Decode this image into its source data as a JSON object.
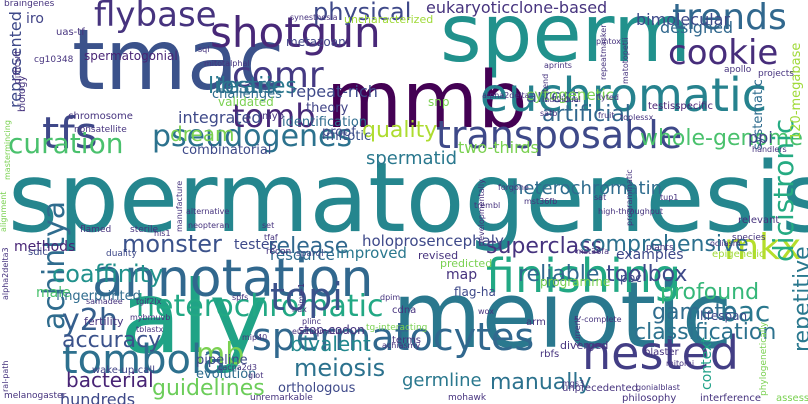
{
  "palette": {
    "background": "#ffffff",
    "colors": [
      "#440154",
      "#482475",
      "#414487",
      "#355f8d",
      "#2a788e",
      "#21908d",
      "#22a884",
      "#42be71",
      "#7ad151",
      "#bddf26",
      "#fde725"
    ]
  },
  "words": [
    {
      "text": "spermatogenesis",
      "color": "#25868e"
    },
    {
      "text": "aly",
      "color": "#20a386"
    },
    {
      "text": "meiotic",
      "color": "#2a788e"
    },
    {
      "text": "sperm",
      "color": "#21918c"
    },
    {
      "text": "mmb",
      "color": "#440154"
    },
    {
      "text": "tmac",
      "color": "#3b528b"
    },
    {
      "text": "annotation",
      "color": "#31688e"
    },
    {
      "text": "finishing",
      "color": "#22a884"
    },
    {
      "text": "euchromatic",
      "color": "#26828e"
    },
    {
      "text": "tombola",
      "color": "#2d708e"
    },
    {
      "text": "spermatocytes",
      "color": "#31688e"
    },
    {
      "text": "nested",
      "color": "#433e85"
    },
    {
      "text": "shotgun",
      "color": "#482878"
    },
    {
      "text": "flybase",
      "color": "#46337e"
    },
    {
      "text": "heterochromatic",
      "color": "#22a884"
    },
    {
      "text": "transposable",
      "color": "#3e4989"
    },
    {
      "text": "pseudogenes",
      "color": "#2c728e"
    },
    {
      "text": "tfs",
      "color": "#3f4889"
    },
    {
      "text": "cookie",
      "color": "#472d7b"
    },
    {
      "text": "trends",
      "color": "#31688e"
    },
    {
      "text": "comr",
      "color": "#443983"
    },
    {
      "text": "tomb",
      "color": "#482878"
    },
    {
      "text": "mkx",
      "color": "#b5de2b"
    },
    {
      "text": "topi",
      "color": "#3b528b"
    },
    {
      "text": "achintya",
      "color": "#2f6c8e"
    },
    {
      "text": "y2h",
      "color": "#355f8d"
    },
    {
      "text": "mb",
      "color": "#7ad151"
    },
    {
      "text": "curation",
      "color": "#4ac16d"
    },
    {
      "text": "quality",
      "color": "#addc30"
    },
    {
      "text": "physical",
      "color": "#3e4989"
    },
    {
      "text": "libraries",
      "color": "#2a788e"
    },
    {
      "text": "testis",
      "color": "#2c728e"
    },
    {
      "text": "dream",
      "color": "#7ad151"
    },
    {
      "text": "monster",
      "color": "#3b528b"
    },
    {
      "text": "coaffinity",
      "color": "#21918c"
    },
    {
      "text": "accuracy",
      "color": "#3b528b"
    },
    {
      "text": "bacterial",
      "color": "#482475"
    },
    {
      "text": "hundreds",
      "color": "#3e4989"
    },
    {
      "text": "guidelines",
      "color": "#6ccd5a"
    },
    {
      "text": "meiosis",
      "color": "#2c728e"
    },
    {
      "text": "bivalent",
      "color": "#23888e"
    },
    {
      "text": "germline",
      "color": "#2a788e"
    },
    {
      "text": "manually",
      "color": "#2c728e"
    },
    {
      "text": "classification",
      "color": "#2c728e"
    },
    {
      "text": "toolbox",
      "color": "#3e4989"
    },
    {
      "text": "bac",
      "color": "#2a788e"
    },
    {
      "text": "superclass",
      "color": "#46337e"
    },
    {
      "text": "comprehensive",
      "color": "#2d708e"
    },
    {
      "text": "heterochromatin",
      "color": "#2f6c8e"
    },
    {
      "text": "whole-genome",
      "color": "#4ac16d"
    },
    {
      "text": "artificial",
      "color": "#31688e"
    },
    {
      "text": "dicistronic",
      "color": "#25ab82"
    },
    {
      "text": "repetitive",
      "color": "#2a788e"
    },
    {
      "text": "release",
      "color": "#31688e"
    },
    {
      "text": "profound",
      "color": "#35b779"
    },
    {
      "text": "gamete",
      "color": "#2f6c8e"
    },
    {
      "text": "reliable",
      "color": "#31688e"
    },
    {
      "text": "context",
      "color": "#1fa187"
    },
    {
      "text": "arrest",
      "color": "#3b528b"
    },
    {
      "text": "designed",
      "color": "#31688e"
    },
    {
      "text": "bimolecular",
      "color": "#3e4989"
    },
    {
      "text": "eukaryoticclone-based",
      "color": "#46337e"
    },
    {
      "text": "repeat-rich",
      "color": "#3e4989"
    },
    {
      "text": "spermatid",
      "color": "#2a788e"
    },
    {
      "text": "two-thirds",
      "color": "#7ad151"
    },
    {
      "text": "integrated",
      "color": "#3e4989"
    },
    {
      "text": "challenges",
      "color": "#2f6c8e"
    },
    {
      "text": "theory",
      "color": "#414487"
    },
    {
      "text": "mitotic",
      "color": "#3b528b"
    },
    {
      "text": "combinatorial",
      "color": "#3e4989"
    },
    {
      "text": "identification",
      "color": "#2f6c8e"
    },
    {
      "text": "proof",
      "color": "#3e4989"
    },
    {
      "text": "quality",
      "color": "#addc30"
    },
    {
      "text": "holoprosencephaly",
      "color": "#3e4989"
    },
    {
      "text": "improved",
      "color": "#2a788e"
    },
    {
      "text": "resource",
      "color": "#2f6c8e"
    },
    {
      "text": "testes",
      "color": "#3e4989"
    },
    {
      "text": "map",
      "color": "#46337e"
    },
    {
      "text": "examples",
      "color": "#3e4989"
    },
    {
      "text": "methods",
      "color": "#482475"
    },
    {
      "text": "male",
      "color": "#4ac16d"
    },
    {
      "text": "fingerprinted",
      "color": "#2f6c8e"
    },
    {
      "text": "represented",
      "color": "#3e4989"
    },
    {
      "text": "spermatogonial",
      "color": "#482475"
    },
    {
      "text": "cytogenetic",
      "color": "#7ad151"
    },
    {
      "text": "integrated",
      "color": "#3e4989"
    },
    {
      "text": "validated",
      "color": "#7ad151"
    },
    {
      "text": "metazoan",
      "color": "#414487"
    },
    {
      "text": "uncharacterized",
      "color": "#a0da39"
    },
    {
      "text": "testisspecific",
      "color": "#482475"
    },
    {
      "text": "120-megabase",
      "color": "#a0da39"
    },
    {
      "text": "systematic",
      "color": "#2f6c8e"
    },
    {
      "text": "evolution",
      "color": "#2f6c8e"
    },
    {
      "text": "pipeline",
      "color": "#3e4989"
    },
    {
      "text": "orthologous",
      "color": "#3e4989"
    },
    {
      "text": "wake-up-call",
      "color": "#414487"
    },
    {
      "text": "pbc",
      "color": "#3e4989"
    },
    {
      "text": "lifespan",
      "color": "#3e4989"
    },
    {
      "text": "snp",
      "color": "#7ad151"
    },
    {
      "text": "ppi",
      "color": "#414487"
    },
    {
      "text": "sdic",
      "color": "#3e4989"
    },
    {
      "text": "duality",
      "color": "#3e4989"
    },
    {
      "text": "recon",
      "color": "#46337e"
    },
    {
      "text": "sparql",
      "color": "#3e4989"
    },
    {
      "text": "revised",
      "color": "#46337e"
    },
    {
      "text": "predicted",
      "color": "#7ad151"
    },
    {
      "text": "plants",
      "color": "#46337e"
    },
    {
      "text": "species",
      "color": "#46337e"
    },
    {
      "text": "relevant",
      "color": "#46337e"
    },
    {
      "text": "epigenetic",
      "color": "#a0da39"
    },
    {
      "text": "programme",
      "color": "#7ad151"
    },
    {
      "text": "stop-codon",
      "color": "#46337e"
    },
    {
      "text": "flag-ha",
      "color": "#3e4989"
    },
    {
      "text": "fertility",
      "color": "#46337e"
    },
    {
      "text": "cdna",
      "color": "#46337e"
    },
    {
      "text": "terms",
      "color": "#46337e"
    },
    {
      "text": "arm",
      "color": "#46337e"
    },
    {
      "text": "diverged",
      "color": "#46337e"
    },
    {
      "text": "blaster",
      "color": "#46337e"
    },
    {
      "text": "rbfs",
      "color": "#46337e"
    },
    {
      "text": "unprecedented",
      "color": "#46337e"
    },
    {
      "text": "philosophy",
      "color": "#46337e"
    },
    {
      "text": "interference",
      "color": "#46337e"
    },
    {
      "text": "assess",
      "color": "#7ad151"
    },
    {
      "text": "melanogaster",
      "color": "#46337e"
    },
    {
      "text": "mohawk",
      "color": "#46337e"
    },
    {
      "text": "unremarkable",
      "color": "#46337e"
    },
    {
      "text": "braingenes",
      "color": "#46337e"
    },
    {
      "text": "iro",
      "color": "#414487"
    },
    {
      "text": "uas-tf",
      "color": "#46337e"
    },
    {
      "text": "cg10348",
      "color": "#46337e"
    },
    {
      "text": "biology",
      "color": "#46337e"
    },
    {
      "text": "difficult",
      "color": "#46337e"
    },
    {
      "text": "chromosome",
      "color": "#46337e"
    },
    {
      "text": "nonsatellite",
      "color": "#46337e"
    },
    {
      "text": "sql",
      "color": "#46337e"
    },
    {
      "text": "myb",
      "color": "#46337e"
    },
    {
      "text": "sterile",
      "color": "#46337e"
    },
    {
      "text": "flamed",
      "color": "#46337e"
    },
    {
      "text": "his1",
      "color": "#46337e"
    },
    {
      "text": "set",
      "color": "#46337e"
    },
    {
      "text": "tfaf",
      "color": "#46337e"
    },
    {
      "text": "neopteran",
      "color": "#46337e"
    },
    {
      "text": "alternative",
      "color": "#46337e"
    },
    {
      "text": "samadee",
      "color": "#46337e"
    },
    {
      "text": "tgif2lx",
      "color": "#46337e"
    },
    {
      "text": "mybmuvb",
      "color": "#46337e"
    },
    {
      "text": "tblastx",
      "color": "#46337e"
    },
    {
      "text": "spfs",
      "color": "#46337e"
    },
    {
      "text": "ndx",
      "color": "#46337e"
    },
    {
      "text": "dpim",
      "color": "#46337e"
    },
    {
      "text": "wox",
      "color": "#46337e"
    },
    {
      "text": "5'-complete",
      "color": "#46337e"
    },
    {
      "text": "mip40",
      "color": "#46337e"
    },
    {
      "text": "cacna2d3",
      "color": "#46337e"
    },
    {
      "text": "plinc",
      "color": "#46337e"
    },
    {
      "text": "euchromatin",
      "color": "#46337e"
    },
    {
      "text": "tg-interacting",
      "color": "#7ad151"
    },
    {
      "text": "achiasmy",
      "color": "#46337e"
    },
    {
      "text": "mgs3",
      "color": "#46337e"
    },
    {
      "text": "gonialblast",
      "color": "#46337e"
    },
    {
      "text": "mitomi",
      "color": "#46337e"
    },
    {
      "text": "high-throughput",
      "color": "#46337e"
    },
    {
      "text": "tup1",
      "color": "#46337e"
    },
    {
      "text": "fruit",
      "color": "#46337e"
    },
    {
      "text": "toplessx",
      "color": "#46337e"
    },
    {
      "text": "handlers",
      "color": "#46337e"
    },
    {
      "text": "apollo",
      "color": "#46337e"
    },
    {
      "text": "projects",
      "color": "#46337e"
    },
    {
      "text": "pintox",
      "color": "#46337e"
    },
    {
      "text": "flyted",
      "color": "#46337e"
    },
    {
      "text": "synesthesia",
      "color": "#46337e"
    },
    {
      "text": "individual",
      "color": "#46337e"
    },
    {
      "text": "alpha2delta",
      "color": "#46337e"
    },
    {
      "text": "repeatmasker",
      "color": "#46337e"
    },
    {
      "text": "matotopetli",
      "color": "#46337e"
    },
    {
      "text": "satb",
      "color": "#46337e"
    },
    {
      "text": "tend",
      "color": "#46337e"
    },
    {
      "text": "trembl",
      "color": "#46337e"
    },
    {
      "text": "forgone",
      "color": "#46337e"
    },
    {
      "text": "mst36fb",
      "color": "#46337e"
    },
    {
      "text": "aprints",
      "color": "#46337e"
    },
    {
      "text": "alpha2delta3",
      "color": "#46337e"
    },
    {
      "text": "current",
      "color": "#46337e"
    },
    {
      "text": "developmentally",
      "color": "#46337e"
    },
    {
      "text": "programmatic",
      "color": "#46337e"
    },
    {
      "text": "manufacture",
      "color": "#46337e"
    },
    {
      "text": "phylogenetically",
      "color": "#7ad151"
    },
    {
      "text": "mitotalphal",
      "color": "#46337e"
    },
    {
      "text": "giot",
      "color": "#46337e"
    },
    {
      "text": "ime-1",
      "color": "#46337e"
    },
    {
      "text": "sat",
      "color": "#46337e"
    },
    {
      "text": "mst36fa",
      "color": "#46337e"
    },
    {
      "text": "ocliasm",
      "color": "#46337e"
    },
    {
      "text": "alignment",
      "color": "#7ad151"
    },
    {
      "text": "mastermincing",
      "color": "#7ad151"
    },
    {
      "text": "ral-path",
      "color": "#46337e"
    }
  ]
}
